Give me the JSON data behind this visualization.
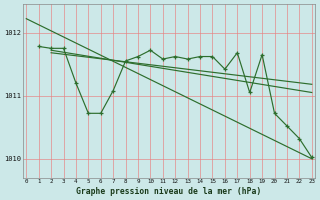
{
  "title": "Graphe pression niveau de la mer (hPa)",
  "bg_color": "#cce8e8",
  "line_color": "#2d6e2d",
  "grid_color": "#e88080",
  "ylim": [
    1009.7,
    1012.45
  ],
  "xlim": [
    -0.3,
    23.3
  ],
  "yticks": [
    1010,
    1011,
    1012
  ],
  "xticks": [
    0,
    1,
    2,
    3,
    4,
    5,
    6,
    7,
    8,
    9,
    10,
    11,
    12,
    13,
    14,
    15,
    16,
    17,
    18,
    19,
    20,
    21,
    22,
    23
  ],
  "line1_x": [
    0,
    23
  ],
  "line1_y": [
    1012.22,
    1010.0
  ],
  "line2_x": [
    2,
    23
  ],
  "line2_y": [
    1011.72,
    1011.05
  ],
  "line3_x": [
    2,
    23
  ],
  "line3_y": [
    1011.68,
    1011.18
  ],
  "series_x": [
    1,
    2,
    3,
    4,
    5,
    6,
    7,
    8,
    9,
    10,
    11,
    12,
    13,
    14,
    15,
    16,
    17,
    18,
    19,
    20,
    21,
    22,
    23
  ],
  "series_y": [
    1011.78,
    1011.75,
    1011.75,
    1011.2,
    1010.72,
    1010.72,
    1011.08,
    1011.55,
    1011.62,
    1011.72,
    1011.58,
    1011.62,
    1011.58,
    1011.62,
    1011.62,
    1011.42,
    1011.68,
    1011.05,
    1011.65,
    1010.72,
    1010.52,
    1010.32,
    1010.02
  ]
}
